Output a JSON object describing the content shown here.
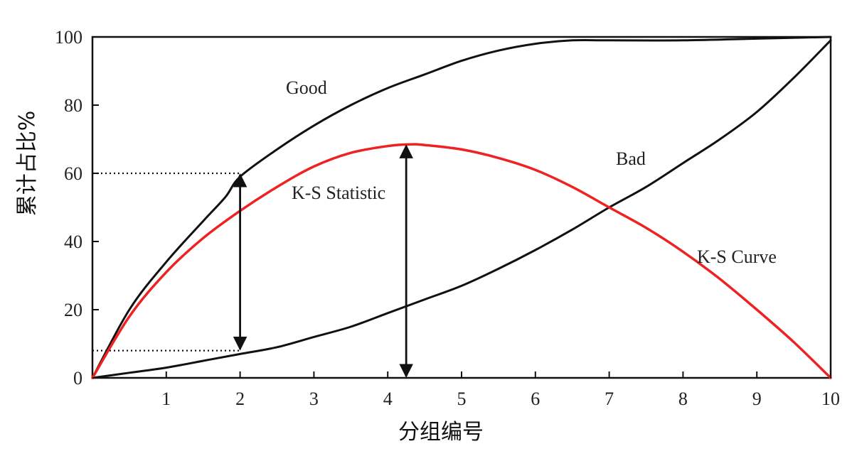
{
  "chart_data": {
    "type": "line",
    "title": "",
    "xlabel": "分组编号",
    "ylabel": "累计占比%",
    "xlim": [
      0,
      10
    ],
    "ylim": [
      0,
      100
    ],
    "x_ticks": [
      1,
      2,
      3,
      4,
      5,
      6,
      7,
      8,
      9,
      10
    ],
    "y_ticks": [
      0,
      20,
      40,
      60,
      80,
      100
    ],
    "grid": false,
    "legend": "none",
    "series": [
      {
        "name": "Good",
        "color": "#111111",
        "x": [
          0,
          0.5,
          1,
          1.5,
          1.8,
          2,
          2.5,
          3,
          3.5,
          4,
          4.5,
          5,
          5.5,
          6,
          6.5,
          7,
          8,
          9,
          10
        ],
        "y": [
          0,
          20,
          34,
          46,
          53,
          59,
          67,
          74,
          80,
          85,
          89,
          93,
          96,
          98,
          99,
          99,
          99,
          99.5,
          100
        ]
      },
      {
        "name": "Bad",
        "color": "#111111",
        "x": [
          0,
          0.5,
          1,
          1.5,
          2,
          2.5,
          3,
          3.5,
          4,
          4.5,
          5,
          5.5,
          6,
          6.5,
          7,
          7.5,
          8,
          8.5,
          9,
          9.5,
          10
        ],
        "y": [
          0,
          1.5,
          3,
          5,
          7,
          9,
          12,
          15,
          19,
          23,
          27,
          32,
          37.5,
          43.5,
          50,
          56,
          63,
          70,
          78,
          88,
          99
        ]
      },
      {
        "name": "K-S Curve",
        "color": "#ee2222",
        "x": [
          0,
          0.5,
          1,
          1.5,
          2,
          2.5,
          3,
          3.5,
          4,
          4.3,
          4.5,
          5,
          5.5,
          6,
          6.5,
          7,
          7.5,
          8,
          8.5,
          9,
          9.5,
          10
        ],
        "y": [
          0,
          18,
          31,
          41,
          49,
          56,
          62,
          66,
          68,
          68.5,
          68.3,
          67,
          64.5,
          61,
          56,
          50,
          44,
          37,
          29,
          20,
          10.5,
          0
        ]
      }
    ],
    "annotations": {
      "good": "Good",
      "bad": "Bad",
      "ks_statistic": "K-S Statistic",
      "ks_curve": "K-S Curve"
    },
    "reference_lines": [
      {
        "type": "dotted-h",
        "y": 60,
        "x_to": 2
      },
      {
        "type": "dotted-h",
        "y": 8,
        "x_to": 2
      }
    ],
    "arrows": [
      {
        "x": 2,
        "y_from": 8,
        "y_to": 60
      },
      {
        "x": 4.25,
        "y_from": 0,
        "y_to": 68.5
      }
    ]
  }
}
